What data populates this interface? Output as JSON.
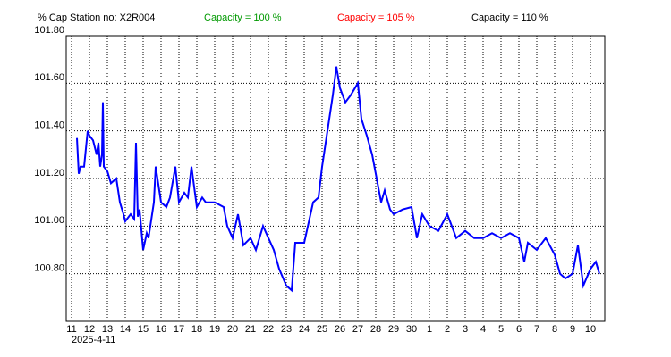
{
  "chart_data": {
    "type": "line",
    "y_label": "% Cap",
    "station": "Station no: X2R004",
    "capacity_labels": [
      {
        "text": "Capacity = 100 %",
        "color": "#009900"
      },
      {
        "text": "Capacity = 105 %",
        "color": "#ff0000"
      },
      {
        "text": "Capacity = 110 %",
        "color": "#000000"
      }
    ],
    "x_start_label": "2025-4-11",
    "series": [
      {
        "color": "#0000ff",
        "x": [
          0.3,
          0.4,
          0.5,
          0.7,
          0.9,
          1.0,
          1.2,
          1.4,
          1.5,
          1.6,
          1.7,
          1.75,
          1.8,
          2.0,
          2.2,
          2.5,
          2.7,
          2.9,
          3.0,
          3.3,
          3.5,
          3.6,
          3.7,
          3.8,
          4.0,
          4.2,
          4.3,
          4.6,
          4.7,
          5.0,
          5.3,
          5.5,
          5.8,
          6.0,
          6.3,
          6.5,
          6.7,
          7.0,
          7.3,
          7.5,
          8.0,
          8.5,
          8.7,
          9.0,
          9.3,
          9.6,
          10.0,
          10.3,
          10.7,
          11.0,
          11.3,
          11.6,
          12.0,
          12.3,
          12.5,
          13.0,
          13.5,
          13.8,
          14.0,
          14.3,
          14.6,
          14.8,
          15.0,
          15.3,
          15.6,
          16.0,
          16.2,
          16.5,
          16.8,
          17.0,
          17.3,
          17.5,
          17.8,
          18.0,
          18.5,
          19.0,
          19.3,
          19.6,
          20.0,
          20.5,
          21.0,
          21.5,
          22.0,
          22.5,
          23.0,
          23.5,
          24.0,
          24.5,
          25.0,
          25.3,
          25.5,
          26.0,
          26.5,
          27.0,
          27.3,
          27.6,
          28.0,
          28.3,
          28.6,
          29.0,
          29.3,
          29.5
        ],
        "values": [
          101.37,
          101.22,
          101.25,
          101.25,
          101.4,
          101.38,
          101.36,
          101.3,
          101.35,
          101.25,
          101.3,
          101.52,
          101.25,
          101.23,
          101.18,
          101.2,
          101.1,
          101.05,
          101.02,
          101.05,
          101.03,
          101.35,
          101.04,
          101.07,
          100.9,
          100.97,
          100.95,
          101.1,
          101.25,
          101.1,
          101.08,
          101.12,
          101.25,
          101.1,
          101.14,
          101.12,
          101.25,
          101.08,
          101.12,
          101.1,
          101.1,
          101.08,
          101.0,
          100.95,
          101.05,
          100.92,
          100.95,
          100.9,
          101.0,
          100.95,
          100.9,
          100.82,
          100.75,
          100.73,
          100.93,
          100.93,
          101.1,
          101.12,
          101.25,
          101.4,
          101.55,
          101.67,
          101.58,
          101.52,
          101.55,
          101.6,
          101.45,
          101.38,
          101.3,
          101.22,
          101.1,
          101.15,
          101.07,
          101.05,
          101.07,
          101.08,
          100.95,
          101.05,
          101.0,
          100.98,
          101.05,
          100.95,
          100.98,
          100.95,
          100.95,
          100.97,
          100.95,
          100.97,
          100.95,
          100.85,
          100.93,
          100.9,
          100.95,
          100.88,
          100.8,
          100.78,
          100.8,
          100.92,
          100.75,
          100.82,
          100.85,
          100.8
        ]
      }
    ],
    "xlim": [
      -0.3,
      29.8
    ],
    "xticks": [
      {
        "value": 0,
        "label": "11"
      },
      {
        "value": 1,
        "label": "12"
      },
      {
        "value": 2,
        "label": "13"
      },
      {
        "value": 3,
        "label": "14"
      },
      {
        "value": 4,
        "label": "15"
      },
      {
        "value": 5,
        "label": "16"
      },
      {
        "value": 6,
        "label": "17"
      },
      {
        "value": 7,
        "label": "18"
      },
      {
        "value": 8,
        "label": "19"
      },
      {
        "value": 9,
        "label": "20"
      },
      {
        "value": 10,
        "label": "21"
      },
      {
        "value": 11,
        "label": "22"
      },
      {
        "value": 12,
        "label": "23"
      },
      {
        "value": 13,
        "label": "24"
      },
      {
        "value": 14,
        "label": "25"
      },
      {
        "value": 15,
        "label": "26"
      },
      {
        "value": 16,
        "label": "27"
      },
      {
        "value": 17,
        "label": "28"
      },
      {
        "value": 18,
        "label": "29"
      },
      {
        "value": 19,
        "label": "30"
      },
      {
        "value": 20,
        "label": "1"
      },
      {
        "value": 21,
        "label": "2"
      },
      {
        "value": 22,
        "label": "3"
      },
      {
        "value": 23,
        "label": "4"
      },
      {
        "value": 24,
        "label": "5"
      },
      {
        "value": 25,
        "label": "6"
      },
      {
        "value": 26,
        "label": "7"
      },
      {
        "value": 27,
        "label": "8"
      },
      {
        "value": 28,
        "label": "9"
      },
      {
        "value": 29,
        "label": "10"
      }
    ],
    "ylim": [
      100.6,
      101.8
    ],
    "yticks": [
      {
        "value": 100.8,
        "label": "100.80"
      },
      {
        "value": 101.0,
        "label": "101.00"
      },
      {
        "value": 101.2,
        "label": "101.20"
      },
      {
        "value": 101.4,
        "label": "101.40"
      },
      {
        "value": 101.6,
        "label": "101.60"
      },
      {
        "value": 101.8,
        "label": "101.80"
      }
    ],
    "grid": true
  }
}
